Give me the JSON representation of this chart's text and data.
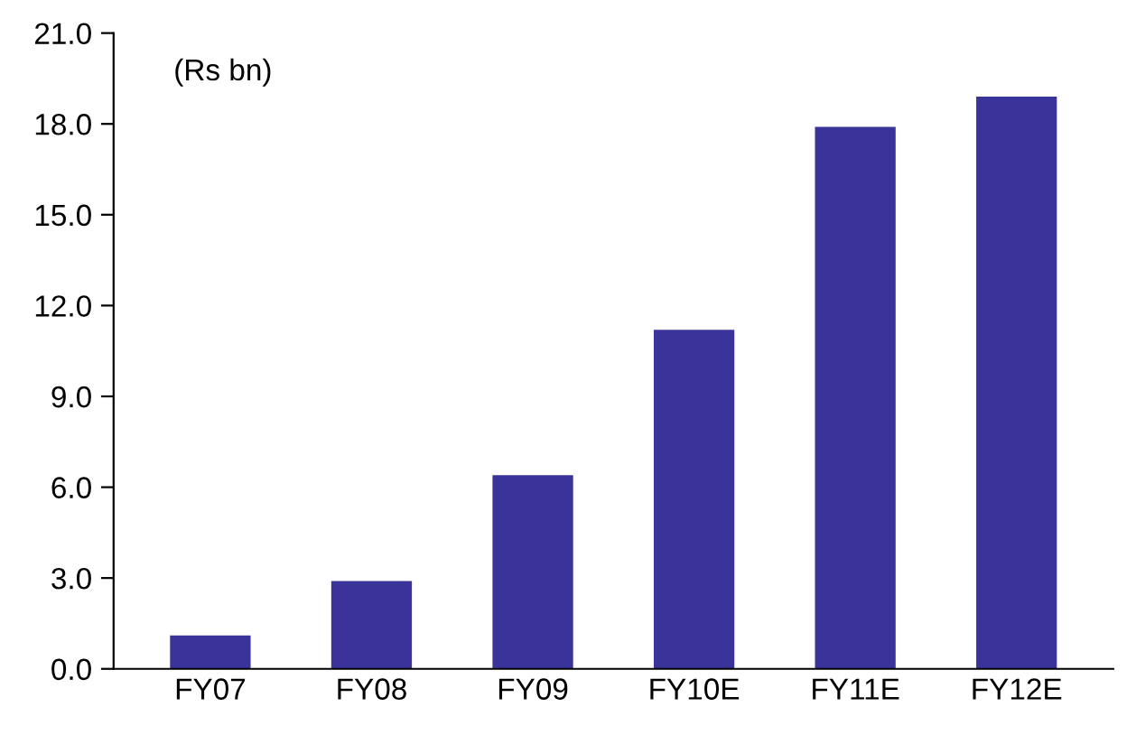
{
  "chart_data": {
    "type": "bar",
    "categories": [
      "FY07",
      "FY08",
      "FY09",
      "FY10E",
      "FY11E",
      "FY12E"
    ],
    "values": [
      1.1,
      2.9,
      6.4,
      11.2,
      17.9,
      18.9
    ],
    "color": "#39339a",
    "ylim": [
      0,
      21
    ],
    "yticks": [
      {
        "value": 0,
        "label": "0.0"
      },
      {
        "value": 3,
        "label": "3.0"
      },
      {
        "value": 6,
        "label": "6.0"
      },
      {
        "value": 9,
        "label": "9.0"
      },
      {
        "value": 12,
        "label": "12.0"
      },
      {
        "value": 15,
        "label": "15.0"
      },
      {
        "value": 18,
        "label": "18.0"
      },
      {
        "value": 21,
        "label": "21.0"
      }
    ],
    "annotations": [
      "(Rs bn)"
    ],
    "grid": false,
    "legend": false
  }
}
